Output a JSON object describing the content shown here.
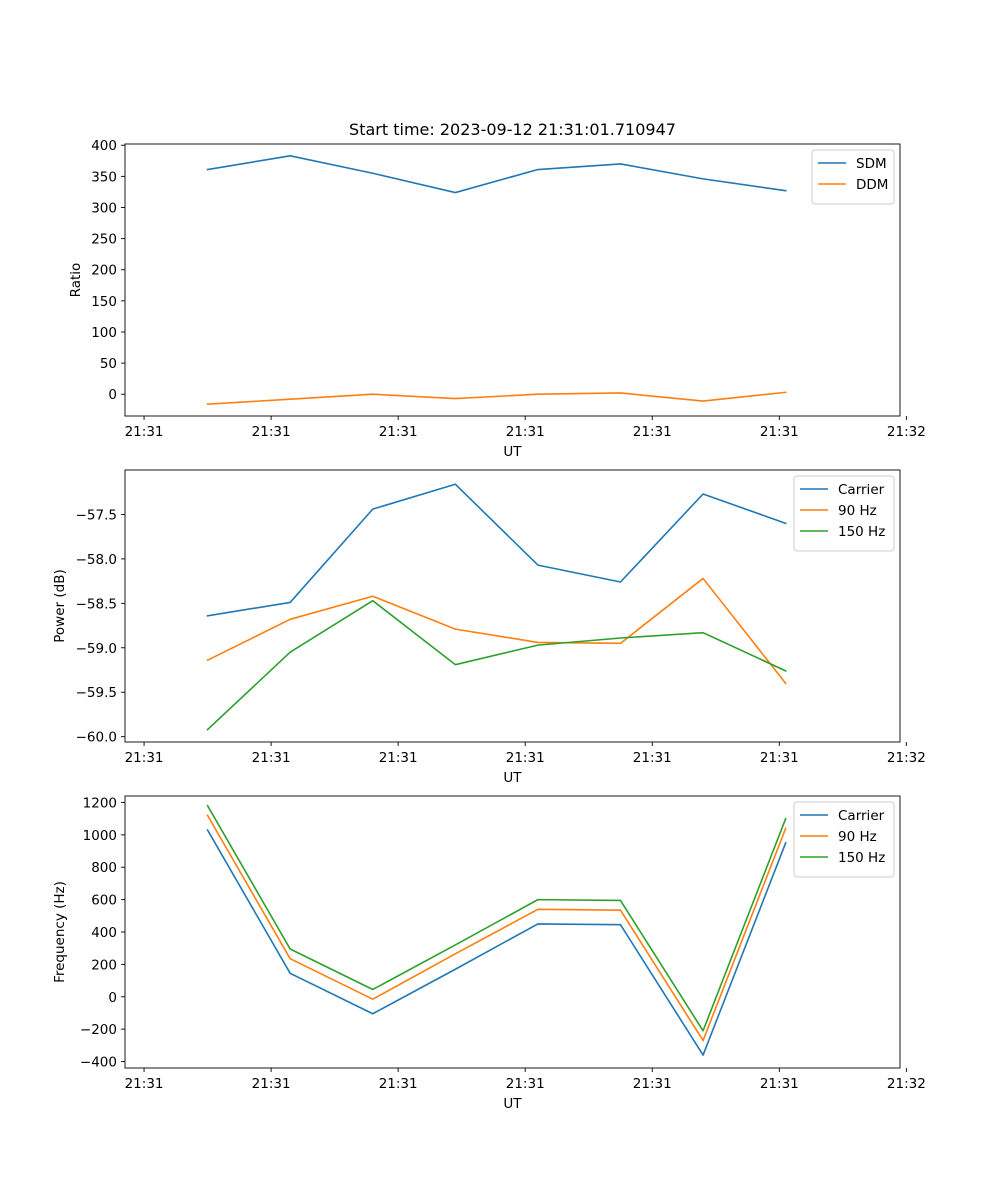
{
  "figure": {
    "title": "Start time: 2023-09-12 21:31:01.710947"
  },
  "chart_data": [
    {
      "type": "line",
      "title": "Start time: 2023-09-12 21:31:01.710947",
      "xlabel": "UT",
      "ylabel": "Ratio",
      "x": [
        0.5,
        1.15,
        1.8,
        2.45,
        3.1,
        3.75,
        4.4,
        5.05
      ],
      "xlim": [
        -0.15,
        5.95
      ],
      "xticks": [
        0,
        1,
        2,
        3,
        4,
        5,
        6
      ],
      "xticklabels": [
        "21:31",
        "21:31",
        "21:31",
        "21:31",
        "21:31",
        "21:31",
        "21:32"
      ],
      "ylim": [
        -35,
        402
      ],
      "yticks": [
        0,
        50,
        100,
        150,
        200,
        250,
        300,
        350,
        400
      ],
      "yticklabels": [
        "0",
        "50",
        "100",
        "150",
        "200",
        "250",
        "300",
        "350",
        "400"
      ],
      "legend_position": "top-right",
      "series": [
        {
          "name": "SDM",
          "color": "#1f77b4",
          "values": [
            361,
            383,
            355,
            324,
            361,
            370,
            346,
            327
          ]
        },
        {
          "name": "DDM",
          "color": "#ff7f0e",
          "values": [
            -16,
            -8,
            0,
            -7,
            0,
            2,
            -11,
            3
          ]
        }
      ]
    },
    {
      "type": "line",
      "title": "",
      "xlabel": "UT",
      "ylabel": "Power (dB)",
      "x": [
        0.5,
        1.15,
        1.8,
        2.45,
        3.1,
        3.75,
        4.4,
        5.05
      ],
      "xlim": [
        -0.15,
        5.95
      ],
      "xticks": [
        0,
        1,
        2,
        3,
        4,
        5,
        6
      ],
      "xticklabels": [
        "21:31",
        "21:31",
        "21:31",
        "21:31",
        "21:31",
        "21:31",
        "21:32"
      ],
      "ylim": [
        -60.06,
        -57.0
      ],
      "yticks": [
        -60.0,
        -59.5,
        -59.0,
        -58.5,
        -58.0,
        -57.5
      ],
      "yticklabels": [
        "−60.0",
        "−59.5",
        "−59.0",
        "−58.5",
        "−58.0",
        "−57.5"
      ],
      "legend_position": "top-right",
      "series": [
        {
          "name": "Carrier",
          "color": "#1f77b4",
          "values": [
            -58.64,
            -58.49,
            -57.44,
            -57.16,
            -58.07,
            -58.26,
            -57.27,
            -57.6
          ]
        },
        {
          "name": "90 Hz",
          "color": "#ff7f0e",
          "values": [
            -59.14,
            -58.68,
            -58.42,
            -58.79,
            -58.94,
            -58.95,
            -58.22,
            -59.4
          ]
        },
        {
          "name": "150 Hz",
          "color": "#2ca02c",
          "values": [
            -59.92,
            -59.05,
            -58.47,
            -59.19,
            -58.97,
            -58.89,
            -58.83,
            -59.26
          ]
        }
      ]
    },
    {
      "type": "line",
      "title": "",
      "xlabel": "UT",
      "ylabel": "Frequency (Hz)",
      "x": [
        0.5,
        1.15,
        1.8,
        2.45,
        3.1,
        3.75,
        4.4,
        5.05
      ],
      "xlim": [
        -0.15,
        5.95
      ],
      "xticks": [
        0,
        1,
        2,
        3,
        4,
        5,
        6
      ],
      "xticklabels": [
        "21:31",
        "21:31",
        "21:31",
        "21:31",
        "21:31",
        "21:31",
        "21:32"
      ],
      "ylim": [
        -440,
        1240
      ],
      "yticks": [
        -400,
        -200,
        0,
        200,
        400,
        600,
        800,
        1000,
        1200
      ],
      "yticklabels": [
        "−400",
        "−200",
        "0",
        "200",
        "400",
        "600",
        "800",
        "1000",
        "1200"
      ],
      "legend_position": "top-right",
      "series": [
        {
          "name": "Carrier",
          "color": "#1f77b4",
          "values": [
            1030,
            145,
            -105,
            170,
            450,
            445,
            -360,
            950
          ]
        },
        {
          "name": "90 Hz",
          "color": "#ff7f0e",
          "values": [
            1120,
            235,
            -15,
            265,
            540,
            535,
            -270,
            1040
          ]
        },
        {
          "name": "150 Hz",
          "color": "#2ca02c",
          "values": [
            1180,
            295,
            45,
            320,
            600,
            595,
            -210,
            1100
          ]
        }
      ]
    }
  ]
}
